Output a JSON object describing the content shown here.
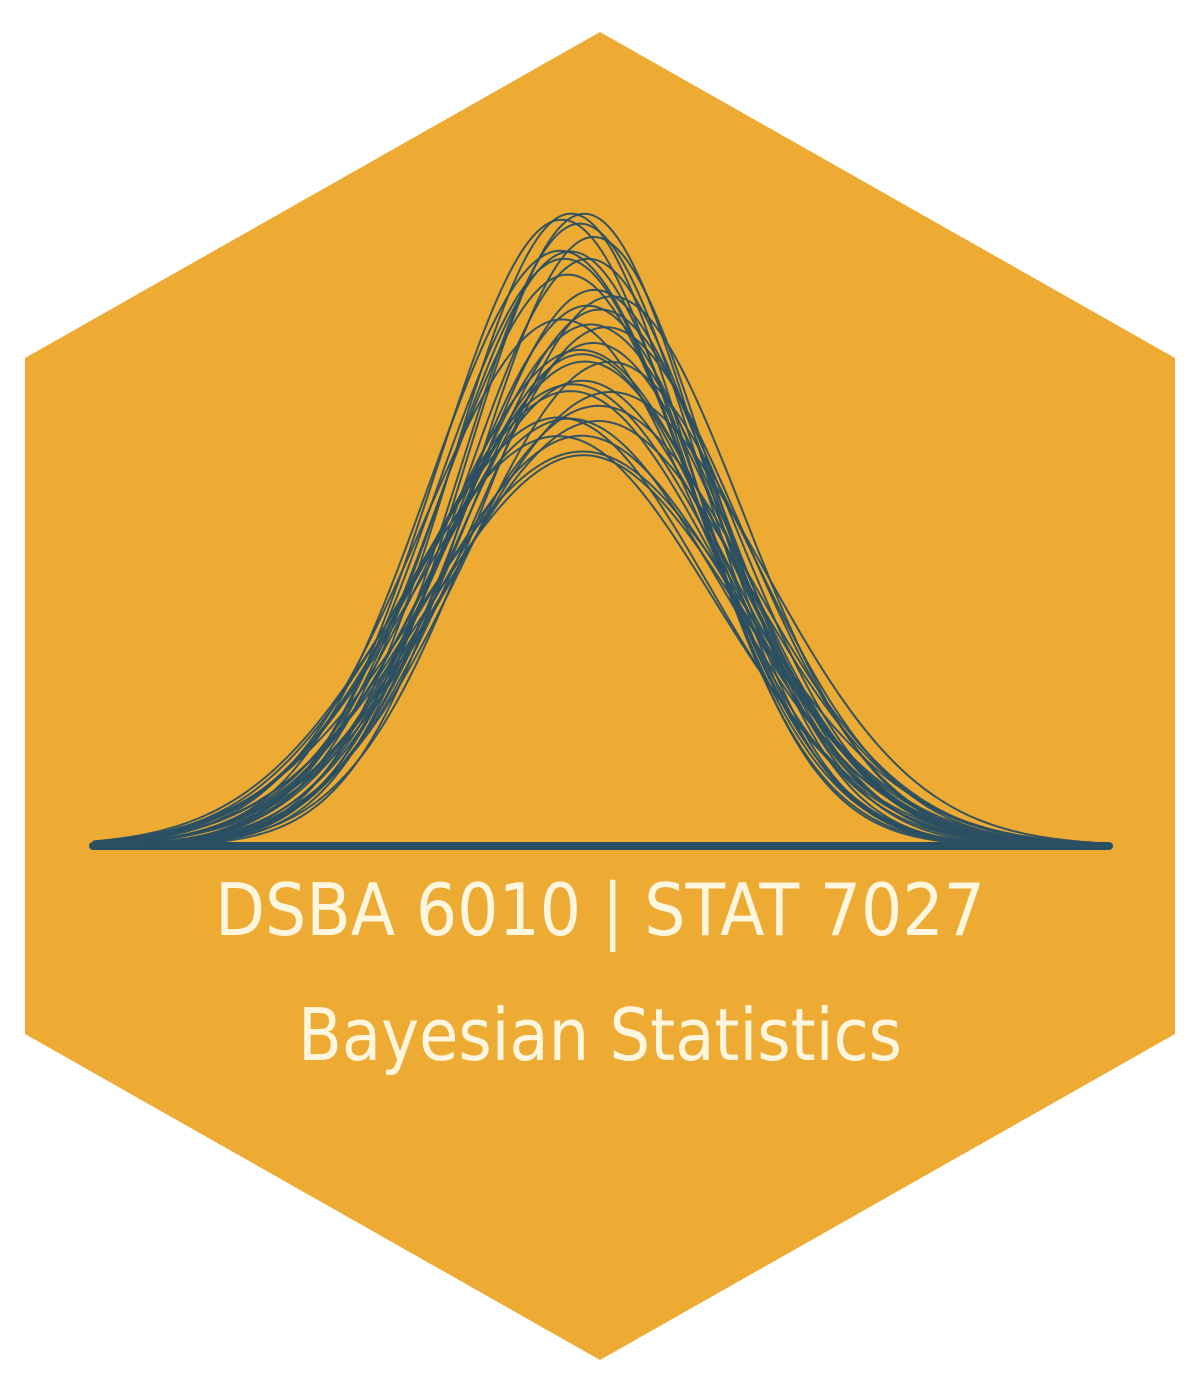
{
  "sticker": {
    "course_codes": "DSBA 6010 | STAT 7027",
    "course_title": "Bayesian Statistics",
    "background_color": "#EEAB33",
    "curve_color": "#2A4F62",
    "text_color": "#FFF6DF",
    "graphic": "overlapping-bell-curves-icon"
  }
}
